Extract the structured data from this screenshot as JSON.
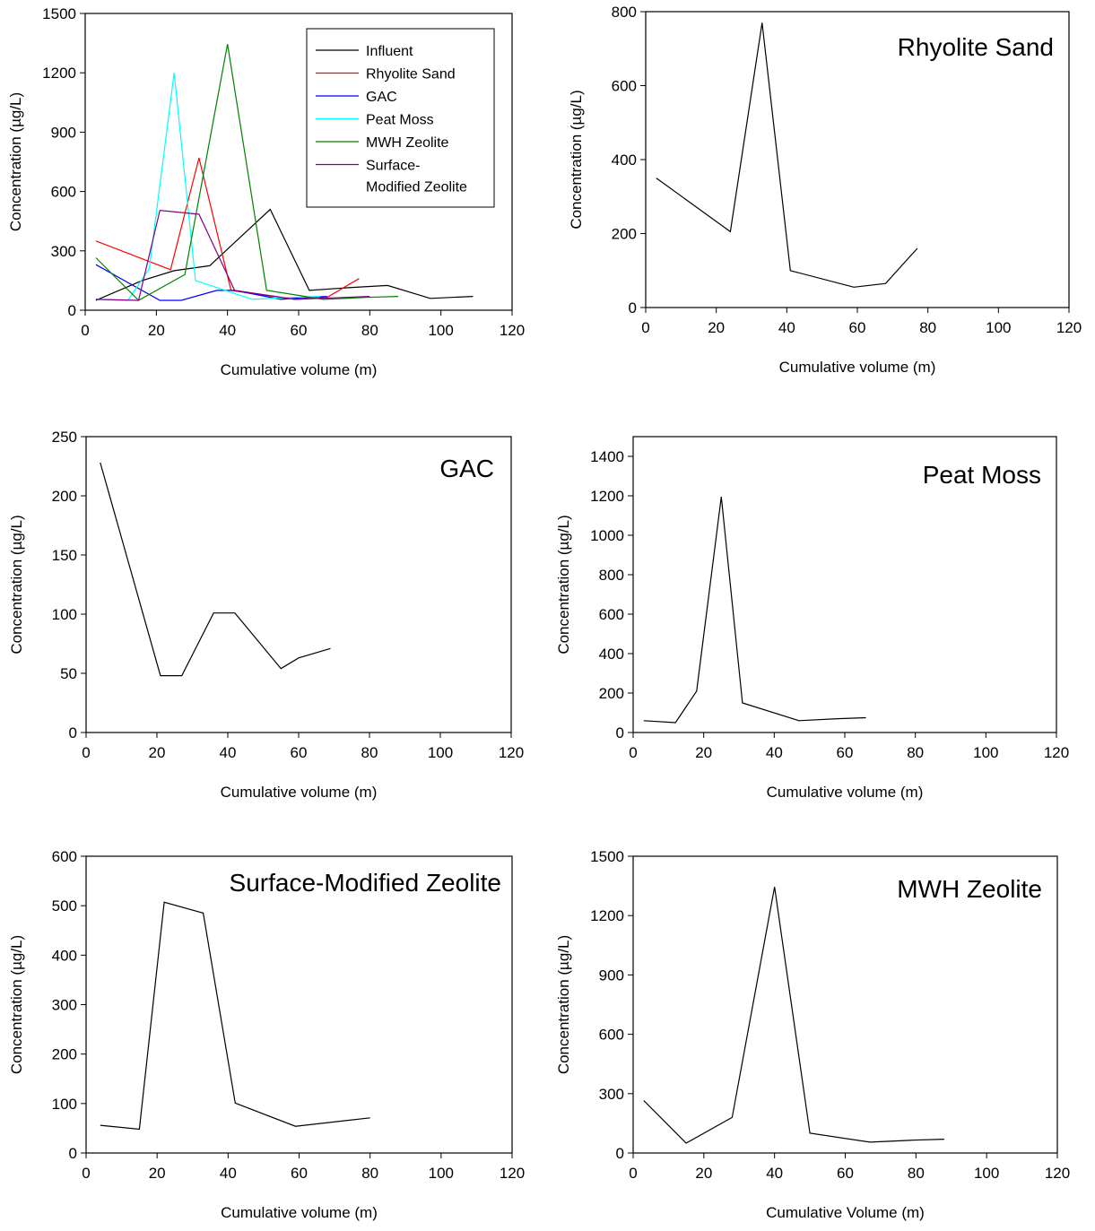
{
  "figure": {
    "charts": [
      {
        "id": "combined",
        "type": "line",
        "title": "",
        "xlabel": "Cumulative volume (m)",
        "ylabel": "Concentration (µg/L)",
        "xlim": [
          0,
          120
        ],
        "ylim": [
          0,
          1500
        ],
        "xticks": [
          0,
          20,
          40,
          60,
          80,
          100,
          120
        ],
        "yticks": [
          0,
          300,
          600,
          900,
          1200,
          1500
        ],
        "legend": "top-right",
        "series": [
          {
            "name": "Influent",
            "color": "#000000",
            "x": [
              3,
              16,
              25,
              35,
              52,
              63,
              75,
              85,
              97,
              109
            ],
            "y": [
              50,
              150,
              200,
              225,
              510,
              100,
              115,
              125,
              60,
              70
            ]
          },
          {
            "name": "Rhyolite Sand",
            "color": "#ff0000",
            "x": [
              3,
              24,
              32,
              41,
              59,
              68,
              77
            ],
            "y": [
              350,
              205,
              770,
              100,
              55,
              65,
              160
            ]
          },
          {
            "name": "GAC",
            "color": "#0000ff",
            "x": [
              3,
              21,
              27,
              37,
              42,
              55,
              60,
              68
            ],
            "y": [
              230,
              50,
              50,
              100,
              100,
              55,
              62,
              70
            ]
          },
          {
            "name": "Peat Moss",
            "color": "#00ffff",
            "x": [
              3,
              12,
              18,
              25,
              31,
              47,
              58,
              66
            ],
            "y": [
              55,
              50,
              210,
              1200,
              150,
              55,
              65,
              70
            ]
          },
          {
            "name": "MWH Zeolite",
            "color": "#008000",
            "x": [
              3,
              15,
              28,
              40,
              51,
              67,
              79,
              88
            ],
            "y": [
              265,
              50,
              180,
              1345,
              100,
              55,
              65,
              70
            ]
          },
          {
            "name": "Surface-\nModified Zeolite",
            "color": "#800080",
            "x": [
              3,
              15,
              21,
              32,
              42,
              59,
              80
            ],
            "y": [
              55,
              50,
              505,
              485,
              100,
              55,
              70
            ]
          }
        ]
      },
      {
        "id": "rhyolite",
        "type": "line",
        "title": "Rhyolite Sand",
        "xlabel": "Cumulative volume (m)",
        "ylabel": "Concentration (µg/L)",
        "xlim": [
          0,
          120
        ],
        "ylim": [
          0,
          800
        ],
        "xticks": [
          0,
          20,
          40,
          60,
          80,
          100,
          120
        ],
        "yticks": [
          0,
          200,
          400,
          600,
          800
        ],
        "series": [
          {
            "color": "#000000",
            "x": [
              3,
              24,
              33,
              41,
              59,
              68,
              77
            ],
            "y": [
              350,
              205,
              770,
              100,
              55,
              65,
              160
            ]
          }
        ]
      },
      {
        "id": "gac",
        "type": "line",
        "title": "GAC",
        "xlabel": "Cumulative volume (m)",
        "ylabel": "Concentration (µg/L)",
        "xlim": [
          0,
          120
        ],
        "ylim": [
          0,
          250
        ],
        "xticks": [
          0,
          20,
          40,
          60,
          80,
          100,
          120
        ],
        "yticks": [
          0,
          50,
          100,
          150,
          200,
          250
        ],
        "series": [
          {
            "color": "#000000",
            "x": [
              4,
              21,
              27,
              36,
              42,
              55,
              60,
              69
            ],
            "y": [
              228,
              48,
              48,
              101,
              101,
              54,
              63,
              71
            ]
          }
        ]
      },
      {
        "id": "peat",
        "type": "line",
        "title": "Peat Moss",
        "xlabel": "Cumulative volume (m)",
        "ylabel": "Concentration (µg/L)",
        "xlim": [
          0,
          120
        ],
        "ylim": [
          0,
          1500
        ],
        "xticks": [
          0,
          20,
          40,
          60,
          80,
          100,
          120
        ],
        "yticks": [
          0,
          200,
          400,
          600,
          800,
          1000,
          1200,
          1400
        ],
        "series": [
          {
            "color": "#000000",
            "x": [
              3,
              12,
              18,
              25,
              31,
              47,
              58,
              66
            ],
            "y": [
              60,
              50,
              210,
              1195,
              150,
              60,
              70,
              75
            ]
          }
        ]
      },
      {
        "id": "smz",
        "type": "line",
        "title": "Surface-Modified Zeolite",
        "xlabel": "Cumulative volume (m)",
        "ylabel": "Concentration (µg/L)",
        "xlim": [
          0,
          120
        ],
        "ylim": [
          0,
          600
        ],
        "xticks": [
          0,
          20,
          40,
          60,
          80,
          100,
          120
        ],
        "yticks": [
          0,
          100,
          200,
          300,
          400,
          500,
          600
        ],
        "series": [
          {
            "color": "#000000",
            "x": [
              4,
              15,
              22,
              33,
              42,
              59,
              80
            ],
            "y": [
              56,
              48,
              507,
              485,
              101,
              54,
              71
            ]
          }
        ]
      },
      {
        "id": "mwh",
        "type": "line",
        "title": "MWH Zeolite",
        "xlabel": "Cumulative Volume (m)",
        "ylabel": "Concentration (µg/L)",
        "xlim": [
          0,
          120
        ],
        "ylim": [
          0,
          1500
        ],
        "xticks": [
          0,
          20,
          40,
          60,
          80,
          100,
          120
        ],
        "yticks": [
          0,
          300,
          600,
          900,
          1200,
          1500
        ],
        "series": [
          {
            "color": "#000000",
            "x": [
              3,
              15,
              28,
              40,
              50,
              67,
              79,
              88
            ],
            "y": [
              265,
              50,
              180,
              1345,
              100,
              55,
              65,
              70
            ]
          }
        ]
      }
    ]
  },
  "chart_data": [
    {
      "type": "line",
      "title": "",
      "xlabel": "Cumulative volume (m)",
      "ylabel": "Concentration (µg/L)",
      "xlim": [
        0,
        120
      ],
      "ylim": [
        0,
        1500
      ],
      "series": [
        {
          "name": "Influent",
          "x": [
            3,
            16,
            25,
            35,
            52,
            63,
            75,
            85,
            97,
            109
          ],
          "y": [
            50,
            150,
            200,
            225,
            510,
            100,
            115,
            125,
            60,
            70
          ]
        },
        {
          "name": "Rhyolite Sand",
          "x": [
            3,
            24,
            32,
            41,
            59,
            68,
            77
          ],
          "y": [
            350,
            205,
            770,
            100,
            55,
            65,
            160
          ]
        },
        {
          "name": "GAC",
          "x": [
            3,
            21,
            27,
            37,
            42,
            55,
            60,
            68
          ],
          "y": [
            230,
            50,
            50,
            100,
            100,
            55,
            62,
            70
          ]
        },
        {
          "name": "Peat Moss",
          "x": [
            3,
            12,
            18,
            25,
            31,
            47,
            58,
            66
          ],
          "y": [
            55,
            50,
            210,
            1200,
            150,
            55,
            65,
            70
          ]
        },
        {
          "name": "MWH Zeolite",
          "x": [
            3,
            15,
            28,
            40,
            51,
            67,
            79,
            88
          ],
          "y": [
            265,
            50,
            180,
            1345,
            100,
            55,
            65,
            70
          ]
        },
        {
          "name": "Surface-Modified Zeolite",
          "x": [
            3,
            15,
            21,
            32,
            42,
            59,
            80
          ],
          "y": [
            55,
            50,
            505,
            485,
            100,
            55,
            70
          ]
        }
      ]
    },
    {
      "type": "line",
      "title": "Rhyolite Sand",
      "xlim": [
        0,
        120
      ],
      "ylim": [
        0,
        800
      ],
      "series": [
        {
          "x": [
            3,
            24,
            33,
            41,
            59,
            68,
            77
          ],
          "y": [
            350,
            205,
            770,
            100,
            55,
            65,
            160
          ]
        }
      ]
    },
    {
      "type": "line",
      "title": "GAC",
      "xlim": [
        0,
        120
      ],
      "ylim": [
        0,
        250
      ],
      "series": [
        {
          "x": [
            4,
            21,
            27,
            36,
            42,
            55,
            60,
            69
          ],
          "y": [
            228,
            48,
            48,
            101,
            101,
            54,
            63,
            71
          ]
        }
      ]
    },
    {
      "type": "line",
      "title": "Peat Moss",
      "xlim": [
        0,
        120
      ],
      "ylim": [
        0,
        1500
      ],
      "series": [
        {
          "x": [
            3,
            12,
            18,
            25,
            31,
            47,
            58,
            66
          ],
          "y": [
            60,
            50,
            210,
            1195,
            150,
            60,
            70,
            75
          ]
        }
      ]
    },
    {
      "type": "line",
      "title": "Surface-Modified Zeolite",
      "xlim": [
        0,
        120
      ],
      "ylim": [
        0,
        600
      ],
      "series": [
        {
          "x": [
            4,
            15,
            22,
            33,
            42,
            59,
            80
          ],
          "y": [
            56,
            48,
            507,
            485,
            101,
            54,
            71
          ]
        }
      ]
    },
    {
      "type": "line",
      "title": "MWH Zeolite",
      "xlabel": "Cumulative Volume (m)",
      "xlim": [
        0,
        120
      ],
      "ylim": [
        0,
        1500
      ],
      "series": [
        {
          "x": [
            3,
            15,
            28,
            40,
            50,
            67,
            79,
            88
          ],
          "y": [
            265,
            50,
            180,
            1345,
            100,
            55,
            65,
            70
          ]
        }
      ]
    }
  ]
}
